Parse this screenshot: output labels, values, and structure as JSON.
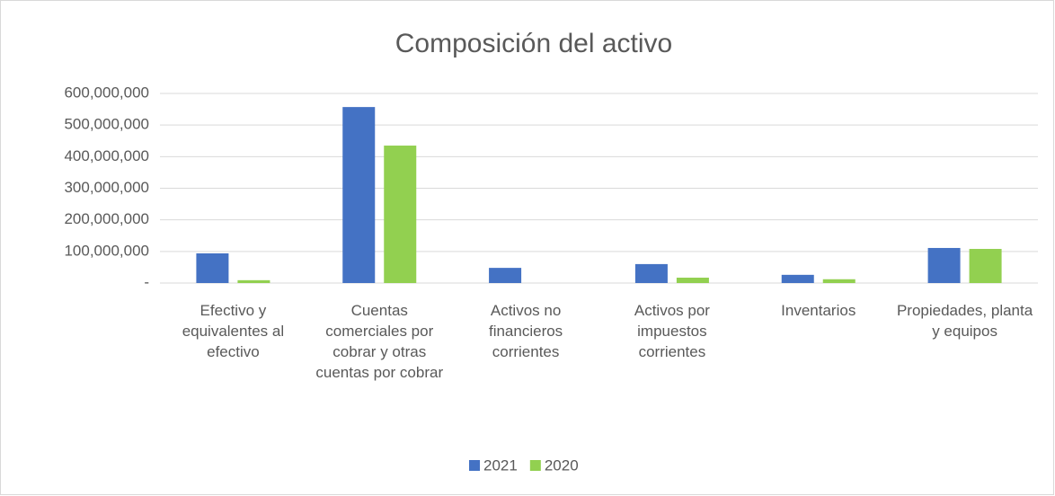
{
  "chart_data": {
    "type": "bar",
    "title": "Composición del activo",
    "categories": [
      "Efectivo y equivalentes al efectivo",
      "Cuentas comerciales por cobrar y otras cuentas por cobrar",
      "Activos no financieros corrientes",
      "Activos por impuestos corrientes",
      "Inventarios",
      "Propiedades, planta y equipos"
    ],
    "series": [
      {
        "name": "2021",
        "color": "#4472c4",
        "values": [
          94000000,
          557000000,
          48000000,
          60000000,
          26000000,
          111000000
        ]
      },
      {
        "name": "2020",
        "color": "#92d050",
        "values": [
          9000000,
          435000000,
          0,
          17000000,
          12000000,
          108000000
        ]
      }
    ],
    "ylim": [
      0,
      600000000
    ],
    "yticks": [
      {
        "value": 0,
        "label": "-"
      },
      {
        "value": 100000000,
        "label": "100,000,000"
      },
      {
        "value": 200000000,
        "label": "200,000,000"
      },
      {
        "value": 300000000,
        "label": "300,000,000"
      },
      {
        "value": 400000000,
        "label": "400,000,000"
      },
      {
        "value": 500000000,
        "label": "500,000,000"
      },
      {
        "value": 600000000,
        "label": "600,000,000"
      }
    ],
    "grid": true,
    "legend": "bottom"
  }
}
